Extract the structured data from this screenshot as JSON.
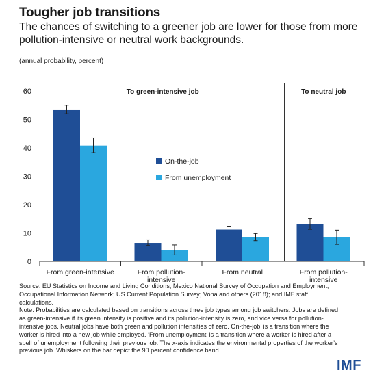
{
  "header": {
    "title": "Tougher job transitions",
    "subtitle": "The chances of switching to a greener job are lower for those from more pollution-intensive or neutral work backgrounds.",
    "unit_note": "(annual probability, percent)"
  },
  "chart_data": {
    "type": "bar",
    "panels": [
      "To green-intensive job",
      "To neutral job"
    ],
    "categories": [
      {
        "label_lines": [
          "From green-intensive"
        ],
        "panel": 0
      },
      {
        "label_lines": [
          "From pollution-",
          "intensive"
        ],
        "panel": 0
      },
      {
        "label_lines": [
          "From neutral"
        ],
        "panel": 0
      },
      {
        "label_lines": [
          "From pollution-",
          "intensive"
        ],
        "panel": 1
      }
    ],
    "series": [
      {
        "name": "On-the-job",
        "color": "#1f4e96",
        "values": [
          53.5,
          6.5,
          11.2,
          13.1
        ],
        "ci_low": [
          52.0,
          5.6,
          10.0,
          11.3
        ],
        "ci_high": [
          55.0,
          7.6,
          12.4,
          15.1
        ]
      },
      {
        "name": "From unemployment",
        "color": "#2aa7df",
        "values": [
          40.8,
          4.0,
          8.5,
          8.5
        ],
        "ci_low": [
          38.3,
          2.3,
          7.3,
          6.0
        ],
        "ci_high": [
          43.5,
          5.8,
          9.8,
          11.0
        ]
      }
    ],
    "ylim": [
      0,
      60
    ],
    "yticks": [
      0,
      10,
      20,
      30,
      40,
      50,
      60
    ],
    "error_bars": "90 percent confidence band",
    "legend_position": "middle-right of left panel"
  },
  "notes": {
    "source": "Source: EU Statistics on Income and Living Conditions; Mexico National Survey of Occupation and Employment; Occupational Information Network; US Current Population Survey; Vona and others (2018); and IMF staff calculations.",
    "note": "Note: Probabilities are calculated based on transitions across three job types among job switchers. Jobs are defined as green-intensive if its green intensity is positive and its pollution-intensity is zero, and vice versa for pollution-intensive jobs. Neutral jobs have both green and pollution intensities of zero. On-the-job’ is a transition where the worker is hired into a new job while employed. ‘From unemployment’ is a transition where a worker is hired after a spell of unemployment following their previous job. The x-axis indicates the environmental properties of the worker’s previous job. Whiskers on the bar depict the 90 percent confidence band."
  },
  "logo": "IMF"
}
